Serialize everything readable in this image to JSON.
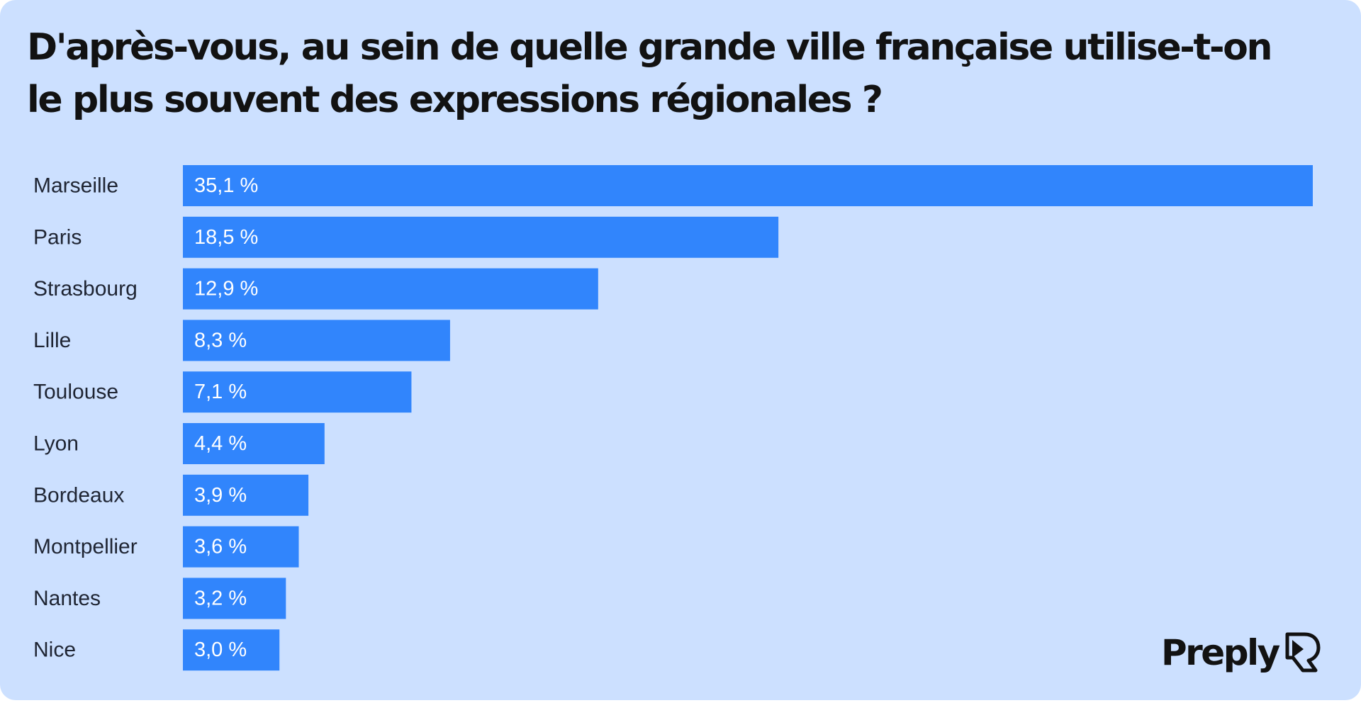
{
  "chart_data": {
    "type": "bar",
    "orientation": "horizontal",
    "title": "D'après-vous, au sein de quelle grande ville française utilise-t-on le plus souvent des expressions régionales ?",
    "categories": [
      "Marseille",
      "Paris",
      "Strasbourg",
      "Lille",
      "Toulouse",
      "Lyon",
      "Bordeaux",
      "Montpellier",
      "Nantes",
      "Nice"
    ],
    "values": [
      35.1,
      18.5,
      12.9,
      8.3,
      7.1,
      4.4,
      3.9,
      3.6,
      3.2,
      3.0
    ],
    "value_labels": [
      "35,1 %",
      "18,5 %",
      "12,9 %",
      "8,3 %",
      "7,1 %",
      "4,4 %",
      "3,9 %",
      "3,6 %",
      "3,2 %",
      "3,0 %"
    ],
    "xlim": [
      0,
      35.1
    ],
    "grid": false,
    "bar_color": "#3185fc",
    "background_color": "#cce0ff"
  },
  "brand": {
    "name": "Preply"
  }
}
